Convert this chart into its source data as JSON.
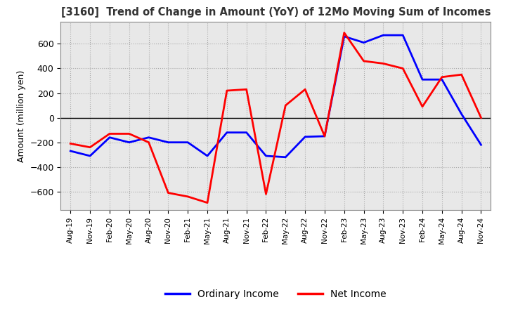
{
  "title": "[3160]  Trend of Change in Amount (YoY) of 12Mo Moving Sum of Incomes",
  "ylabel": "Amount (million yen)",
  "ylim": [
    -750,
    780
  ],
  "yticks": [
    -600,
    -400,
    -200,
    0,
    200,
    400,
    600
  ],
  "legend_labels": [
    "Ordinary Income",
    "Net Income"
  ],
  "line_colors": [
    "#0000FF",
    "#FF0000"
  ],
  "x_labels": [
    "Aug-19",
    "Nov-19",
    "Feb-20",
    "May-20",
    "Aug-20",
    "Nov-20",
    "Feb-21",
    "May-21",
    "Aug-21",
    "Nov-21",
    "Feb-22",
    "May-22",
    "Aug-22",
    "Nov-22",
    "Feb-23",
    "May-23",
    "Aug-23",
    "Nov-23",
    "Feb-24",
    "May-24",
    "Aug-24",
    "Nov-24"
  ],
  "ordinary_income": [
    -270,
    -310,
    -160,
    -200,
    -160,
    -200,
    -200,
    -310,
    -120,
    -120,
    -310,
    -320,
    -155,
    -150,
    660,
    610,
    670,
    670,
    310,
    310,
    30,
    -220
  ],
  "net_income": [
    -210,
    -240,
    -130,
    -130,
    -200,
    -610,
    -640,
    -690,
    220,
    230,
    -620,
    100,
    230,
    -150,
    690,
    460,
    440,
    400,
    90,
    330,
    350,
    0
  ]
}
